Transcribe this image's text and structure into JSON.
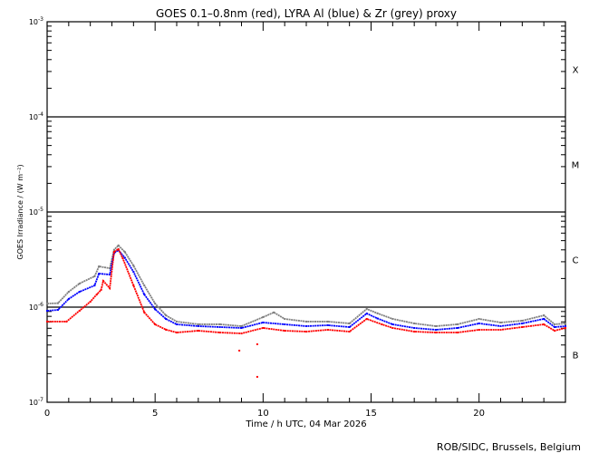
{
  "chart_data": {
    "type": "line",
    "title": "GOES 0.1–0.8nm (red), LYRA Al (blue) & Zr (grey) proxy",
    "xlabel": "Time / h UTC, 04 Mar 2026",
    "ylabel": "GOES Irradiance / (W m⁻²)",
    "xlim": [
      0,
      24
    ],
    "ylim": [
      1e-07,
      0.001
    ],
    "yscale": "log",
    "x_ticks": [
      {
        "v": 0,
        "label": "0"
      },
      {
        "v": 5,
        "label": "5"
      },
      {
        "v": 10,
        "label": "10"
      },
      {
        "v": 15,
        "label": "15"
      },
      {
        "v": 20,
        "label": "20"
      }
    ],
    "y_ticks": [
      {
        "v": 0.001,
        "base": "10",
        "exp": "-3"
      },
      {
        "v": 0.0001,
        "base": "10",
        "exp": "-4"
      },
      {
        "v": 1e-05,
        "base": "10",
        "exp": "-5"
      },
      {
        "v": 1e-06,
        "base": "10",
        "exp": "-6"
      },
      {
        "v": 1e-07,
        "base": "10",
        "exp": "-7"
      }
    ],
    "class_lines": [
      0.0001,
      1e-05,
      1e-06
    ],
    "class_labels": [
      {
        "label": "X",
        "v": 0.000316
      },
      {
        "label": "M",
        "v": 3.16e-05
      },
      {
        "label": "C",
        "v": 3.16e-06
      },
      {
        "label": "B",
        "v": 3.16e-07
      }
    ],
    "series": [
      {
        "name": "LYRA Zr proxy",
        "color": "#808080",
        "x": [
          0,
          0.5,
          1,
          1.5,
          2.2,
          2.4,
          2.9,
          3.1,
          3.3,
          3.6,
          4,
          4.5,
          5,
          5.5,
          6,
          7,
          8,
          9,
          10,
          10.5,
          11,
          12,
          13,
          14,
          14.8,
          15.3,
          16,
          17,
          18,
          19,
          20,
          21,
          22,
          23,
          23.5,
          24
        ],
        "y": [
          1.09e-06,
          1.1e-06,
          1.45e-06,
          1.77e-06,
          2.11e-06,
          2.68e-06,
          2.56e-06,
          4e-06,
          4.45e-06,
          3.8e-06,
          2.73e-06,
          1.69e-06,
          1.09e-06,
          8.2e-07,
          7.05e-07,
          6.6e-07,
          6.6e-07,
          6.31e-07,
          7.85e-07,
          8.8e-07,
          7.52e-07,
          7.05e-07,
          7.05e-07,
          6.74e-07,
          9.57e-07,
          8.6e-07,
          7.52e-07,
          6.74e-07,
          6.31e-07,
          6.6e-07,
          7.52e-07,
          6.89e-07,
          7.2e-07,
          8.2e-07,
          6.6e-07,
          6.74e-07
        ]
      },
      {
        "name": "LYRA Al proxy",
        "color": "#0000ff",
        "x": [
          0,
          0.5,
          1,
          1.5,
          2.2,
          2.4,
          2.9,
          3.1,
          3.3,
          3.6,
          4,
          4.5,
          5,
          5.5,
          6,
          7,
          8,
          9,
          10,
          11,
          12,
          13,
          14,
          14.8,
          15.3,
          16,
          17,
          18,
          19,
          20,
          21,
          22,
          23,
          23.5,
          24
        ],
        "y": [
          9.16e-07,
          9.35e-07,
          1.22e-06,
          1.45e-06,
          1.69e-06,
          2.25e-06,
          2.2e-06,
          3.7e-06,
          3.98e-06,
          3.3e-06,
          2.35e-06,
          1.36e-06,
          9.5e-07,
          7.52e-07,
          6.59e-07,
          6.31e-07,
          6.17e-07,
          6.04e-07,
          6.89e-07,
          6.59e-07,
          6.31e-07,
          6.45e-07,
          6.17e-07,
          8.57e-07,
          7.6e-07,
          6.59e-07,
          6.04e-07,
          5.78e-07,
          6.04e-07,
          6.74e-07,
          6.31e-07,
          6.74e-07,
          7.52e-07,
          6.17e-07,
          6.31e-07
        ]
      },
      {
        "name": "GOES 0.1-0.8nm",
        "color": "#ff0000",
        "x": [
          0,
          0.9,
          1.5,
          2.0,
          2.3,
          2.5,
          2.6,
          2.9,
          3.1,
          3.3,
          3.5,
          4,
          4.5,
          5,
          5.5,
          6,
          7,
          8,
          9,
          10,
          11,
          12,
          13,
          14,
          14.8,
          15.5,
          16,
          17,
          18,
          19,
          20,
          21,
          22,
          23,
          23.5,
          24
        ],
        "y": [
          7.05e-07,
          7.05e-07,
          9.16e-07,
          1.14e-06,
          1.36e-06,
          1.52e-06,
          1.89e-06,
          1.58e-06,
          3.81e-06,
          4.07e-06,
          3.27e-06,
          1.69e-06,
          8.8e-07,
          6.59e-07,
          5.8e-07,
          5.41e-07,
          5.65e-07,
          5.41e-07,
          5.29e-07,
          6.04e-07,
          5.65e-07,
          5.53e-07,
          5.78e-07,
          5.53e-07,
          7.52e-07,
          6.59e-07,
          6.04e-07,
          5.53e-07,
          5.41e-07,
          5.41e-07,
          5.78e-07,
          5.78e-07,
          6.17e-07,
          6.59e-07,
          5.65e-07,
          6.04e-07
        ],
        "outliers": [
          {
            "x": 8.9,
            "y": 3.49e-07
          },
          {
            "x": 9.73,
            "y": 4.07e-07
          },
          {
            "x": 9.73,
            "y": 1.85e-07
          }
        ]
      }
    ],
    "grid": false
  },
  "footer": "ROB/SIDC, Brussels, Belgium"
}
